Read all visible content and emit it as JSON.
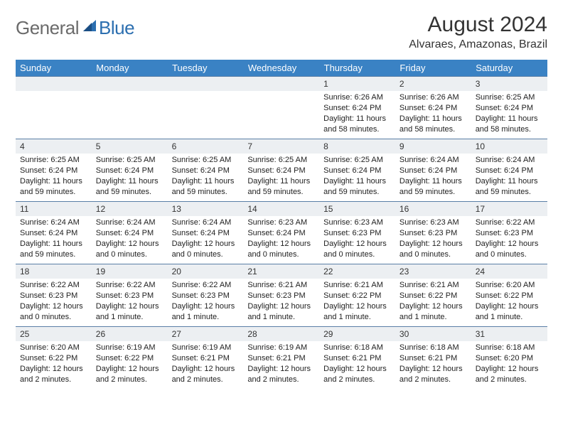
{
  "logo": {
    "text_gray": "General",
    "text_blue": "Blue"
  },
  "title": "August 2024",
  "location": "Alvaraes, Amazonas, Brazil",
  "colors": {
    "header_bg": "#3a82c4",
    "header_fg": "#ffffff",
    "daynum_bg": "#eceff2",
    "row_border": "#5a7fa6",
    "logo_gray": "#6b6b6b",
    "logo_blue": "#2c6fb0"
  },
  "day_names": [
    "Sunday",
    "Monday",
    "Tuesday",
    "Wednesday",
    "Thursday",
    "Friday",
    "Saturday"
  ],
  "weeks": [
    [
      {
        "num": "",
        "sunrise": "",
        "sunset": "",
        "daylight": ""
      },
      {
        "num": "",
        "sunrise": "",
        "sunset": "",
        "daylight": ""
      },
      {
        "num": "",
        "sunrise": "",
        "sunset": "",
        "daylight": ""
      },
      {
        "num": "",
        "sunrise": "",
        "sunset": "",
        "daylight": ""
      },
      {
        "num": "1",
        "sunrise": "Sunrise: 6:26 AM",
        "sunset": "Sunset: 6:24 PM",
        "daylight": "Daylight: 11 hours and 58 minutes."
      },
      {
        "num": "2",
        "sunrise": "Sunrise: 6:26 AM",
        "sunset": "Sunset: 6:24 PM",
        "daylight": "Daylight: 11 hours and 58 minutes."
      },
      {
        "num": "3",
        "sunrise": "Sunrise: 6:25 AM",
        "sunset": "Sunset: 6:24 PM",
        "daylight": "Daylight: 11 hours and 58 minutes."
      }
    ],
    [
      {
        "num": "4",
        "sunrise": "Sunrise: 6:25 AM",
        "sunset": "Sunset: 6:24 PM",
        "daylight": "Daylight: 11 hours and 59 minutes."
      },
      {
        "num": "5",
        "sunrise": "Sunrise: 6:25 AM",
        "sunset": "Sunset: 6:24 PM",
        "daylight": "Daylight: 11 hours and 59 minutes."
      },
      {
        "num": "6",
        "sunrise": "Sunrise: 6:25 AM",
        "sunset": "Sunset: 6:24 PM",
        "daylight": "Daylight: 11 hours and 59 minutes."
      },
      {
        "num": "7",
        "sunrise": "Sunrise: 6:25 AM",
        "sunset": "Sunset: 6:24 PM",
        "daylight": "Daylight: 11 hours and 59 minutes."
      },
      {
        "num": "8",
        "sunrise": "Sunrise: 6:25 AM",
        "sunset": "Sunset: 6:24 PM",
        "daylight": "Daylight: 11 hours and 59 minutes."
      },
      {
        "num": "9",
        "sunrise": "Sunrise: 6:24 AM",
        "sunset": "Sunset: 6:24 PM",
        "daylight": "Daylight: 11 hours and 59 minutes."
      },
      {
        "num": "10",
        "sunrise": "Sunrise: 6:24 AM",
        "sunset": "Sunset: 6:24 PM",
        "daylight": "Daylight: 11 hours and 59 minutes."
      }
    ],
    [
      {
        "num": "11",
        "sunrise": "Sunrise: 6:24 AM",
        "sunset": "Sunset: 6:24 PM",
        "daylight": "Daylight: 11 hours and 59 minutes."
      },
      {
        "num": "12",
        "sunrise": "Sunrise: 6:24 AM",
        "sunset": "Sunset: 6:24 PM",
        "daylight": "Daylight: 12 hours and 0 minutes."
      },
      {
        "num": "13",
        "sunrise": "Sunrise: 6:24 AM",
        "sunset": "Sunset: 6:24 PM",
        "daylight": "Daylight: 12 hours and 0 minutes."
      },
      {
        "num": "14",
        "sunrise": "Sunrise: 6:23 AM",
        "sunset": "Sunset: 6:24 PM",
        "daylight": "Daylight: 12 hours and 0 minutes."
      },
      {
        "num": "15",
        "sunrise": "Sunrise: 6:23 AM",
        "sunset": "Sunset: 6:23 PM",
        "daylight": "Daylight: 12 hours and 0 minutes."
      },
      {
        "num": "16",
        "sunrise": "Sunrise: 6:23 AM",
        "sunset": "Sunset: 6:23 PM",
        "daylight": "Daylight: 12 hours and 0 minutes."
      },
      {
        "num": "17",
        "sunrise": "Sunrise: 6:22 AM",
        "sunset": "Sunset: 6:23 PM",
        "daylight": "Daylight: 12 hours and 0 minutes."
      }
    ],
    [
      {
        "num": "18",
        "sunrise": "Sunrise: 6:22 AM",
        "sunset": "Sunset: 6:23 PM",
        "daylight": "Daylight: 12 hours and 0 minutes."
      },
      {
        "num": "19",
        "sunrise": "Sunrise: 6:22 AM",
        "sunset": "Sunset: 6:23 PM",
        "daylight": "Daylight: 12 hours and 1 minute."
      },
      {
        "num": "20",
        "sunrise": "Sunrise: 6:22 AM",
        "sunset": "Sunset: 6:23 PM",
        "daylight": "Daylight: 12 hours and 1 minute."
      },
      {
        "num": "21",
        "sunrise": "Sunrise: 6:21 AM",
        "sunset": "Sunset: 6:23 PM",
        "daylight": "Daylight: 12 hours and 1 minute."
      },
      {
        "num": "22",
        "sunrise": "Sunrise: 6:21 AM",
        "sunset": "Sunset: 6:22 PM",
        "daylight": "Daylight: 12 hours and 1 minute."
      },
      {
        "num": "23",
        "sunrise": "Sunrise: 6:21 AM",
        "sunset": "Sunset: 6:22 PM",
        "daylight": "Daylight: 12 hours and 1 minute."
      },
      {
        "num": "24",
        "sunrise": "Sunrise: 6:20 AM",
        "sunset": "Sunset: 6:22 PM",
        "daylight": "Daylight: 12 hours and 1 minute."
      }
    ],
    [
      {
        "num": "25",
        "sunrise": "Sunrise: 6:20 AM",
        "sunset": "Sunset: 6:22 PM",
        "daylight": "Daylight: 12 hours and 2 minutes."
      },
      {
        "num": "26",
        "sunrise": "Sunrise: 6:19 AM",
        "sunset": "Sunset: 6:22 PM",
        "daylight": "Daylight: 12 hours and 2 minutes."
      },
      {
        "num": "27",
        "sunrise": "Sunrise: 6:19 AM",
        "sunset": "Sunset: 6:21 PM",
        "daylight": "Daylight: 12 hours and 2 minutes."
      },
      {
        "num": "28",
        "sunrise": "Sunrise: 6:19 AM",
        "sunset": "Sunset: 6:21 PM",
        "daylight": "Daylight: 12 hours and 2 minutes."
      },
      {
        "num": "29",
        "sunrise": "Sunrise: 6:18 AM",
        "sunset": "Sunset: 6:21 PM",
        "daylight": "Daylight: 12 hours and 2 minutes."
      },
      {
        "num": "30",
        "sunrise": "Sunrise: 6:18 AM",
        "sunset": "Sunset: 6:21 PM",
        "daylight": "Daylight: 12 hours and 2 minutes."
      },
      {
        "num": "31",
        "sunrise": "Sunrise: 6:18 AM",
        "sunset": "Sunset: 6:20 PM",
        "daylight": "Daylight: 12 hours and 2 minutes."
      }
    ]
  ]
}
